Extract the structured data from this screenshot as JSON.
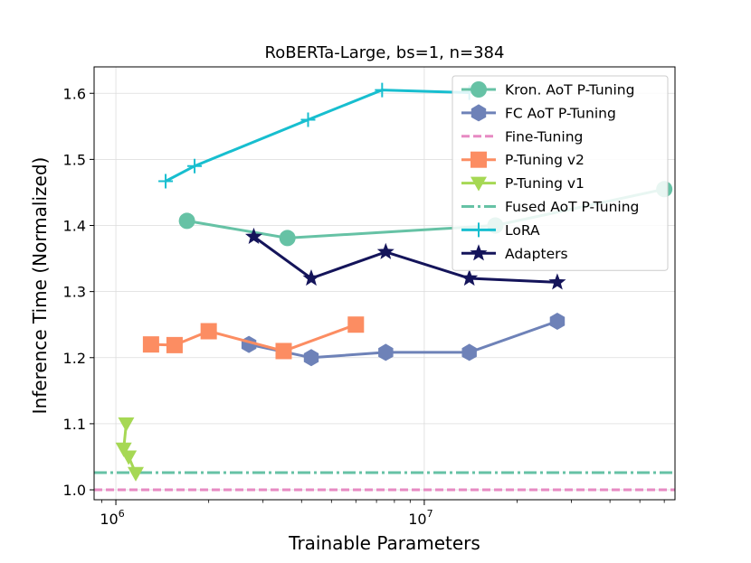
{
  "chart_data": {
    "type": "line",
    "title": "RoBERTa-Large, bs=1, n=384",
    "xlabel": "Trainable Parameters",
    "ylabel": "Inference Time (Normalized)",
    "xscale": "log",
    "xlim": [
      850000,
      65000000
    ],
    "ylim": [
      0.985,
      1.64
    ],
    "x_ticks": [
      {
        "value": 1000000,
        "base": "10",
        "exp": "6"
      },
      {
        "value": 10000000,
        "base": "10",
        "exp": "7"
      }
    ],
    "y_ticks": [
      {
        "value": 1.0,
        "label": "1.0"
      },
      {
        "value": 1.1,
        "label": "1.1"
      },
      {
        "value": 1.2,
        "label": "1.2"
      },
      {
        "value": 1.3,
        "label": "1.3"
      },
      {
        "value": 1.4,
        "label": "1.4"
      },
      {
        "value": 1.5,
        "label": "1.5"
      },
      {
        "value": 1.6,
        "label": "1.6"
      }
    ],
    "grid": true,
    "legend_position": "top-right",
    "series": [
      {
        "name": "Kron. AoT P-Tuning",
        "color": "#66c2a5",
        "marker": "circle",
        "points": [
          [
            1700000,
            1.407
          ],
          [
            3600000,
            1.381
          ],
          [
            17000000,
            1.4
          ],
          [
            60000000,
            1.455
          ]
        ]
      },
      {
        "name": "FC AoT P-Tuning",
        "color": "#6e82b8",
        "marker": "hexagon",
        "points": [
          [
            2700000,
            1.22
          ],
          [
            4300000,
            1.2
          ],
          [
            7500000,
            1.208
          ],
          [
            14000000,
            1.208
          ],
          [
            27000000,
            1.255
          ]
        ]
      },
      {
        "name": "Fine-Tuning",
        "color": "#e78ac3",
        "marker": "none",
        "line": "dashed",
        "y": 1.0
      },
      {
        "name": "P-Tuning v2",
        "color": "#fc8d62",
        "marker": "square",
        "points": [
          [
            1300000,
            1.22
          ],
          [
            1550000,
            1.219
          ],
          [
            2000000,
            1.24
          ],
          [
            3500000,
            1.21
          ],
          [
            6000000,
            1.25
          ]
        ]
      },
      {
        "name": "P-Tuning v1",
        "color": "#a6d854",
        "marker": "triangle-down",
        "points": [
          [
            1080000,
            1.1
          ],
          [
            1060000,
            1.062
          ],
          [
            1100000,
            1.05
          ],
          [
            1160000,
            1.025
          ]
        ]
      },
      {
        "name": "Fused AoT P-Tuning",
        "color": "#66c2a5",
        "marker": "none",
        "line": "dashdot",
        "y": 1.026
      },
      {
        "name": "LoRA",
        "color": "#17becf",
        "marker": "plus",
        "points": [
          [
            1450000,
            1.467
          ],
          [
            1800000,
            1.49
          ],
          [
            4200000,
            1.56
          ],
          [
            7300000,
            1.605
          ],
          [
            14000000,
            1.601
          ]
        ]
      },
      {
        "name": "Adapters",
        "color": "#14145a",
        "marker": "star",
        "points": [
          [
            2800000,
            1.383
          ],
          [
            4300000,
            1.32
          ],
          [
            7500000,
            1.36
          ],
          [
            14000000,
            1.32
          ],
          [
            27000000,
            1.314
          ]
        ]
      }
    ]
  }
}
